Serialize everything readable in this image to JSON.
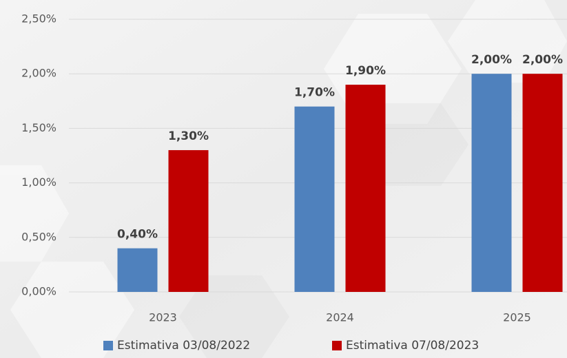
{
  "chart_data": {
    "type": "bar",
    "categories": [
      "2023",
      "2024",
      "2025"
    ],
    "series": [
      {
        "name": "Estimativa 03/08/2022",
        "color": "#4f81bd",
        "values": [
          0.4,
          1.7,
          2.0
        ],
        "value_labels": [
          "0,40%",
          "1,70%",
          "2,00%"
        ]
      },
      {
        "name": "Estimativa 07/08/2023",
        "color": "#c00000",
        "values": [
          1.3,
          1.9,
          2.0
        ],
        "value_labels": [
          "1,30%",
          "1,90%",
          "2,00%"
        ]
      }
    ],
    "ylim": [
      0,
      2.5
    ],
    "yticks": [
      {
        "value": 0,
        "label": "0,00%"
      },
      {
        "value": 0.5,
        "label": "0,50%"
      },
      {
        "value": 1,
        "label": "1,00%"
      },
      {
        "value": 1.5,
        "label": "1,50%"
      },
      {
        "value": 2,
        "label": "2,00%"
      },
      {
        "value": 2.5,
        "label": "2,50%"
      }
    ],
    "grid": true,
    "legend": "bottom"
  }
}
